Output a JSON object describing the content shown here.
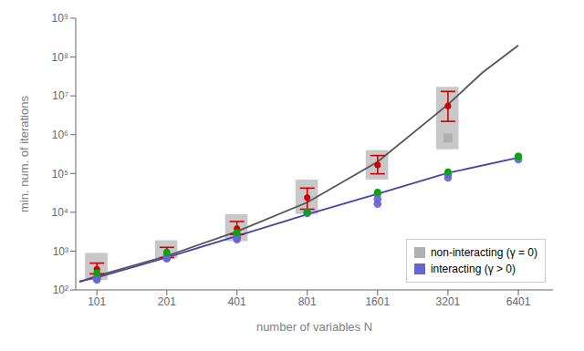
{
  "chart_data": {
    "type": "scatter",
    "xlabel": "number of variables N",
    "ylabel": "min. num. of iterations",
    "log": true,
    "grid": false,
    "legend": "lower right",
    "x": [
      101,
      201,
      401,
      801,
      1601,
      3201,
      6401
    ],
    "xlim": [
      82,
      9000
    ],
    "xticks": [
      101,
      201,
      401,
      801,
      1601,
      3201,
      6401
    ],
    "ylim": [
      100,
      1000000000
    ],
    "yticks": [
      {
        "value": 100,
        "label": "10²"
      },
      {
        "value": 1000,
        "label": "10³"
      },
      {
        "value": 10000,
        "label": "10⁴"
      },
      {
        "value": 100000,
        "label": "10⁵"
      },
      {
        "value": 1000000,
        "label": "10⁶"
      },
      {
        "value": 10000000,
        "label": "10⁷"
      },
      {
        "value": 100000000,
        "label": "10⁸"
      },
      {
        "value": 1000000000,
        "label": "10⁹"
      }
    ],
    "series": [
      {
        "name": "non-interacting (γ = 0)",
        "type": "range",
        "color": "#b0b0b0",
        "low": [
          180,
          650,
          1800,
          9000,
          70000,
          420000,
          null
        ],
        "high": [
          900,
          1900,
          9000,
          70000,
          400000,
          17000000,
          null
        ]
      },
      {
        "type": "scatter",
        "marker": "square",
        "color": "#b0b0b0",
        "x": [
          3201
        ],
        "values": [
          820000
        ]
      },
      {
        "type": "line",
        "color": "#555555",
        "x": [
          85,
          101,
          201,
          401,
          801,
          1601,
          3201,
          4500,
          6401
        ],
        "values": [
          160,
          230,
          750,
          3200,
          18000,
          200000,
          6000000,
          40000000,
          200000000
        ]
      },
      {
        "type": "line",
        "color": "#4444aa",
        "x": [
          85,
          101,
          201,
          401,
          801,
          1601,
          3201,
          6401
        ],
        "values": [
          165,
          210,
          690,
          2450,
          8800,
          30000,
          103000,
          255000
        ]
      },
      {
        "name": "interacting (γ > 0)",
        "type": "scatter",
        "marker": "circle",
        "color": "#6666cc",
        "x": [
          101,
          101,
          101,
          201,
          201,
          201,
          401,
          401,
          401,
          801,
          801,
          1601,
          1601,
          1601,
          3201,
          3201,
          6401,
          6401
        ],
        "values": [
          215,
          198,
          182,
          720,
          675,
          635,
          2350,
          2150,
          2000,
          10000,
          9400,
          30000,
          22000,
          16500,
          95000,
          78000,
          275000,
          230000
        ]
      },
      {
        "type": "scatter",
        "marker": "circle",
        "color": "#cc0000",
        "values": [
          340,
          940,
          3800,
          24000,
          165000,
          5500000,
          null
        ],
        "error_low": [
          260,
          680,
          2700,
          12000,
          98000,
          2200000,
          null
        ],
        "error_high": [
          490,
          1250,
          5800,
          42000,
          290000,
          13000000,
          null
        ]
      },
      {
        "type": "scatter",
        "marker": "circle",
        "color": "#00aa00",
        "values": [
          275,
          920,
          3000,
          10000,
          33000,
          110000,
          270000
        ]
      }
    ]
  }
}
